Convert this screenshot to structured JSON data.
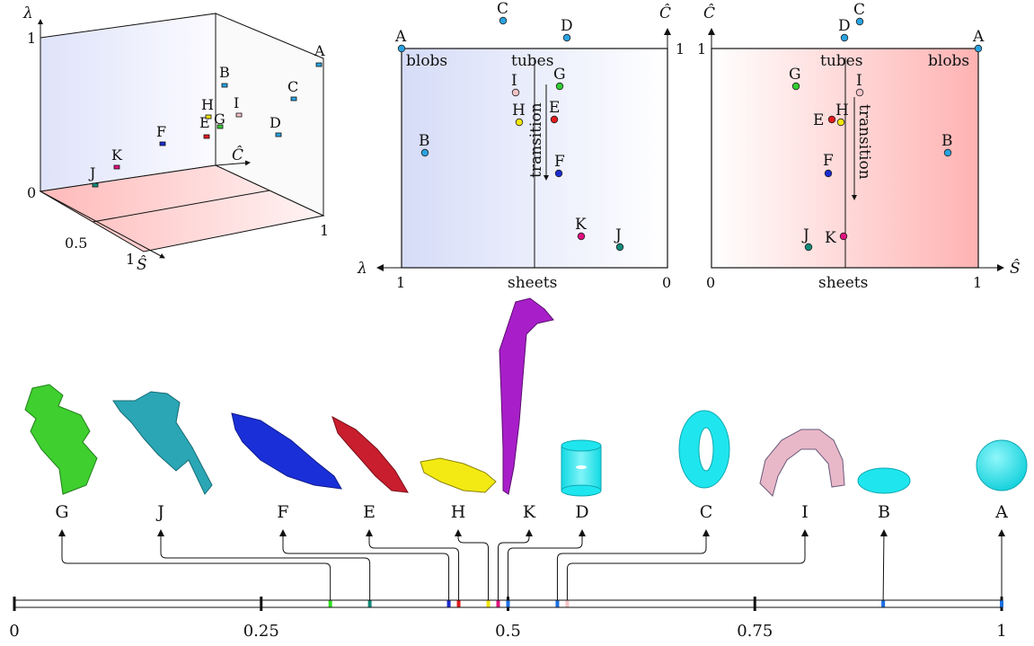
{
  "cube3d": {
    "axis_lambda": "λ",
    "axis_c": "Ĉ",
    "axis_s": "Ŝ",
    "tick_lambda_0": "0",
    "tick_lambda_1": "1",
    "tick_c_1": "1",
    "tick_s_05": "0.5",
    "tick_s_1": "1",
    "points": [
      {
        "id": "A",
        "color": "#29a3e0"
      },
      {
        "id": "B",
        "color": "#29a3e0"
      },
      {
        "id": "C",
        "color": "#29a3e0"
      },
      {
        "id": "D",
        "color": "#29a3e0"
      },
      {
        "id": "E",
        "color": "#e31a1c"
      },
      {
        "id": "F",
        "color": "#1c2bd0"
      },
      {
        "id": "G",
        "color": "#33cc33"
      },
      {
        "id": "H",
        "color": "#f2e60c"
      },
      {
        "id": "I",
        "color": "#f4c3c8"
      },
      {
        "id": "J",
        "color": "#138a7a"
      },
      {
        "id": "K",
        "color": "#e0117f"
      }
    ]
  },
  "plot_lambda": {
    "region_blobs": "blobs",
    "region_tubes": "tubes",
    "region_sheets": "sheets",
    "transition": "transition",
    "x_axis": "λ",
    "y_axis": "Ĉ",
    "tick_x_left": "1",
    "tick_x_right": "0",
    "tick_y_top": "1"
  },
  "plot_s": {
    "region_blobs": "blobs",
    "region_tubes": "tubes",
    "region_sheets": "sheets",
    "transition": "transition",
    "x_axis": "Ŝ",
    "y_axis": "Ĉ",
    "tick_x_left": "0",
    "tick_x_right": "1",
    "tick_y_top": "1"
  },
  "shapes": [
    {
      "id": "G",
      "color": "#3fcf2f",
      "kind": "green surface"
    },
    {
      "id": "J",
      "color": "#2aa6b4",
      "kind": "teal surface"
    },
    {
      "id": "F",
      "color": "#1b2fd8",
      "kind": "blue sheet"
    },
    {
      "id": "E",
      "color": "#c81e2e",
      "kind": "red sheet"
    },
    {
      "id": "H",
      "color": "#f2ea12",
      "kind": "yellow sheet"
    },
    {
      "id": "K",
      "color": "#a81fc9",
      "kind": "purple spike"
    },
    {
      "id": "D",
      "color": "#1fe6ee",
      "kind": "cylinder"
    },
    {
      "id": "C",
      "color": "#1fe6ee",
      "kind": "torus"
    },
    {
      "id": "I",
      "color": "#e8b8c8",
      "kind": "pink tube"
    },
    {
      "id": "B",
      "color": "#1fe6ee",
      "kind": "flat disk"
    },
    {
      "id": "A",
      "color": "#1fe6ee",
      "kind": "sphere"
    }
  ],
  "scale": {
    "ticks": [
      "0",
      "0.25",
      "0.5",
      "0.75",
      "1"
    ],
    "markers": [
      {
        "id": "G",
        "value": 0.32,
        "color": "#33dd22"
      },
      {
        "id": "J",
        "value": 0.36,
        "color": "#138a7a"
      },
      {
        "id": "F",
        "value": 0.44,
        "color": "#1c2bd0"
      },
      {
        "id": "E",
        "value": 0.45,
        "color": "#e31a1c"
      },
      {
        "id": "H",
        "value": 0.48,
        "color": "#f2e60c"
      },
      {
        "id": "K",
        "value": 0.49,
        "color": "#e0117f"
      },
      {
        "id": "D",
        "value": 0.5,
        "color": "#1e6fe0"
      },
      {
        "id": "C",
        "value": 0.55,
        "color": "#1e6fe0"
      },
      {
        "id": "I",
        "value": 0.56,
        "color": "#f4c3c8"
      },
      {
        "id": "B",
        "value": 0.88,
        "color": "#1e6fe0"
      },
      {
        "id": "A",
        "value": 1.0,
        "color": "#1e6fe0"
      }
    ]
  }
}
